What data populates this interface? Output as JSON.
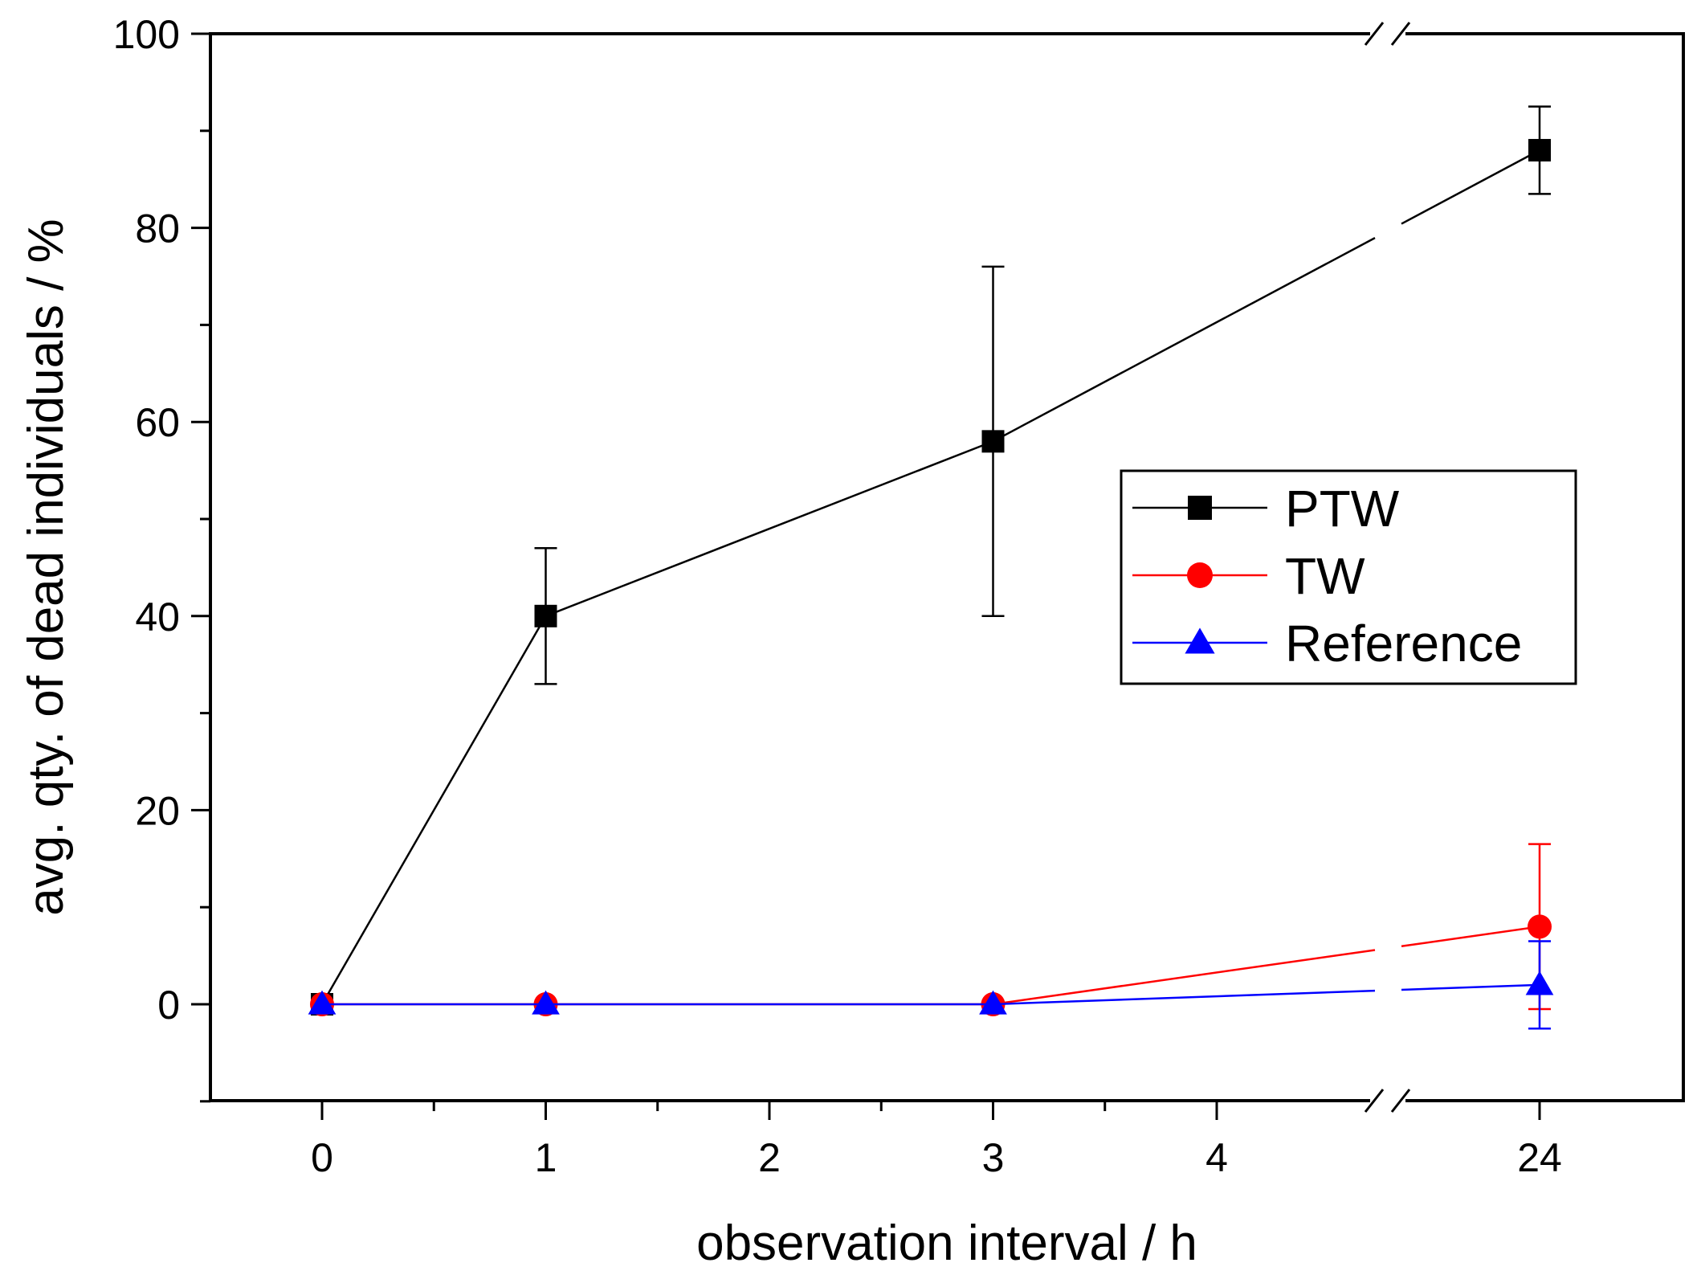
{
  "chart_data": {
    "type": "line",
    "title": "",
    "xlabel": "observation interval / h",
    "ylabel": "avg. qty. of dead individuals / %",
    "ylim": [
      -10,
      100
    ],
    "y_ticks": [
      0,
      20,
      40,
      60,
      80,
      100
    ],
    "x_ticks": [
      "0",
      "1",
      "2",
      "3",
      "4",
      "24"
    ],
    "x_axis_break": "between 4 and 24",
    "legend_position": "center-right",
    "series": [
      {
        "name": "PTW",
        "color": "#000000",
        "marker": "square",
        "points": [
          {
            "x": 0,
            "y": 0,
            "err": 0
          },
          {
            "x": 1,
            "y": 40,
            "err": 7
          },
          {
            "x": 3,
            "y": 58,
            "err": 18
          },
          {
            "x": 24,
            "y": 88,
            "err": 4.5
          }
        ]
      },
      {
        "name": "TW",
        "color": "#ff0000",
        "marker": "circle",
        "points": [
          {
            "x": 0,
            "y": 0,
            "err": 0
          },
          {
            "x": 1,
            "y": 0,
            "err": 0
          },
          {
            "x": 3,
            "y": 0,
            "err": 0
          },
          {
            "x": 24,
            "y": 8,
            "err": 8.5
          }
        ]
      },
      {
        "name": "Reference",
        "color": "#0000ff",
        "marker": "triangle",
        "points": [
          {
            "x": 0,
            "y": 0,
            "err": 0
          },
          {
            "x": 1,
            "y": 0,
            "err": 0
          },
          {
            "x": 3,
            "y": 0,
            "err": 0
          },
          {
            "x": 24,
            "y": 2,
            "err": 4.5
          }
        ]
      }
    ]
  }
}
